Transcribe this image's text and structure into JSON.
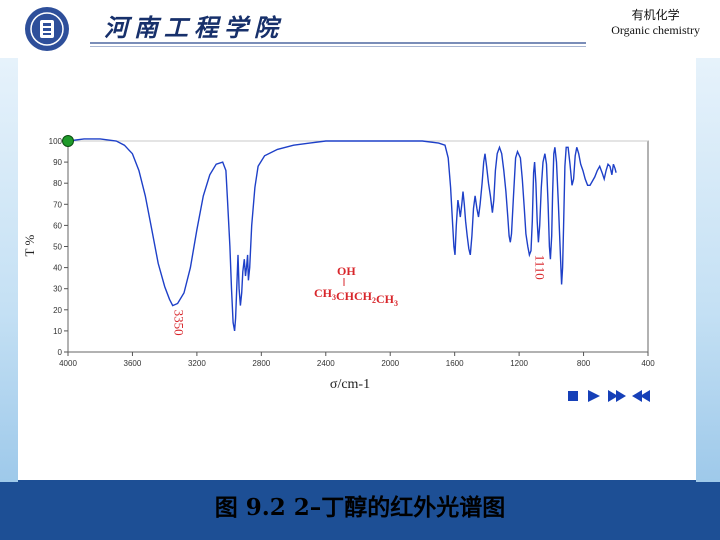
{
  "header": {
    "school_name": "河南工程学院",
    "course_cn": "有机化学",
    "course_en": "Organic chemistry"
  },
  "caption": "图 9.2   2–丁醇的红外光谱图",
  "chart_data": {
    "type": "line",
    "xlabel": "σ/cm-1",
    "ylabel": "T %",
    "xlim": [
      4000,
      400
    ],
    "ylim": [
      0,
      100
    ],
    "x_ticks": [
      4000,
      3600,
      3200,
      2800,
      2400,
      2000,
      1600,
      1200,
      800,
      400
    ],
    "y_ticks": [
      0,
      10,
      20,
      30,
      40,
      50,
      60,
      70,
      80,
      90,
      100
    ],
    "annotations": [
      {
        "text": "3350",
        "x": 3350,
        "y": 22
      },
      {
        "text": "1110",
        "x": 1110,
        "y": 48
      }
    ],
    "molecule": {
      "top": "OH",
      "bottom": "CH3CHCH2CH3"
    },
    "series": [
      {
        "color": "#1e40c8",
        "points": [
          [
            4000,
            100
          ],
          [
            3900,
            101
          ],
          [
            3800,
            101
          ],
          [
            3700,
            100
          ],
          [
            3650,
            98
          ],
          [
            3600,
            94
          ],
          [
            3560,
            86
          ],
          [
            3520,
            74
          ],
          [
            3480,
            58
          ],
          [
            3440,
            42
          ],
          [
            3400,
            31
          ],
          [
            3370,
            25
          ],
          [
            3350,
            22
          ],
          [
            3320,
            23
          ],
          [
            3280,
            28
          ],
          [
            3240,
            40
          ],
          [
            3200,
            58
          ],
          [
            3160,
            74
          ],
          [
            3120,
            84
          ],
          [
            3080,
            89
          ],
          [
            3040,
            90
          ],
          [
            3020,
            86
          ],
          [
            3010,
            72
          ],
          [
            2995,
            50
          ],
          [
            2985,
            30
          ],
          [
            2975,
            14
          ],
          [
            2966,
            10
          ],
          [
            2960,
            16
          ],
          [
            2950,
            36
          ],
          [
            2945,
            46
          ],
          [
            2938,
            30
          ],
          [
            2930,
            22
          ],
          [
            2922,
            28
          ],
          [
            2915,
            38
          ],
          [
            2906,
            44
          ],
          [
            2898,
            36
          ],
          [
            2892,
            40
          ],
          [
            2885,
            46
          ],
          [
            2880,
            34
          ],
          [
            2872,
            40
          ],
          [
            2860,
            60
          ],
          [
            2840,
            78
          ],
          [
            2820,
            88
          ],
          [
            2780,
            93
          ],
          [
            2700,
            96
          ],
          [
            2600,
            98
          ],
          [
            2500,
            99
          ],
          [
            2400,
            100
          ],
          [
            2200,
            100
          ],
          [
            2000,
            100
          ],
          [
            1800,
            100
          ],
          [
            1700,
            99
          ],
          [
            1660,
            98
          ],
          [
            1640,
            92
          ],
          [
            1625,
            78
          ],
          [
            1612,
            60
          ],
          [
            1605,
            50
          ],
          [
            1598,
            46
          ],
          [
            1590,
            60
          ],
          [
            1580,
            72
          ],
          [
            1572,
            68
          ],
          [
            1565,
            64
          ],
          [
            1556,
            70
          ],
          [
            1548,
            76
          ],
          [
            1540,
            70
          ],
          [
            1532,
            62
          ],
          [
            1522,
            55
          ],
          [
            1512,
            49
          ],
          [
            1503,
            46
          ],
          [
            1493,
            55
          ],
          [
            1483,
            68
          ],
          [
            1473,
            74
          ],
          [
            1462,
            68
          ],
          [
            1452,
            64
          ],
          [
            1442,
            70
          ],
          [
            1430,
            80
          ],
          [
            1420,
            90
          ],
          [
            1412,
            94
          ],
          [
            1402,
            88
          ],
          [
            1390,
            80
          ],
          [
            1378,
            74
          ],
          [
            1366,
            66
          ],
          [
            1357,
            72
          ],
          [
            1347,
            86
          ],
          [
            1336,
            94
          ],
          [
            1322,
            97
          ],
          [
            1308,
            94
          ],
          [
            1295,
            86
          ],
          [
            1282,
            76
          ],
          [
            1270,
            64
          ],
          [
            1262,
            55
          ],
          [
            1255,
            52
          ],
          [
            1247,
            56
          ],
          [
            1235,
            74
          ],
          [
            1222,
            92
          ],
          [
            1210,
            95
          ],
          [
            1192,
            92
          ],
          [
            1180,
            82
          ],
          [
            1168,
            68
          ],
          [
            1158,
            56
          ],
          [
            1146,
            50
          ],
          [
            1136,
            46
          ],
          [
            1126,
            48
          ],
          [
            1118,
            62
          ],
          [
            1110,
            85
          ],
          [
            1104,
            90
          ],
          [
            1096,
            80
          ],
          [
            1088,
            62
          ],
          [
            1080,
            52
          ],
          [
            1072,
            60
          ],
          [
            1062,
            78
          ],
          [
            1052,
            90
          ],
          [
            1040,
            94
          ],
          [
            1030,
            89
          ],
          [
            1020,
            70
          ],
          [
            1012,
            50
          ],
          [
            1006,
            44
          ],
          [
            998,
            55
          ],
          [
            992,
            75
          ],
          [
            985,
            94
          ],
          [
            978,
            97
          ],
          [
            968,
            90
          ],
          [
            956,
            70
          ],
          [
            944,
            46
          ],
          [
            936,
            32
          ],
          [
            930,
            40
          ],
          [
            924,
            60
          ],
          [
            916,
            88
          ],
          [
            908,
            97
          ],
          [
            896,
            97
          ],
          [
            884,
            89
          ],
          [
            872,
            79
          ],
          [
            862,
            82
          ],
          [
            852,
            93
          ],
          [
            842,
            97
          ],
          [
            830,
            94
          ],
          [
            818,
            89
          ],
          [
            804,
            86
          ],
          [
            790,
            82
          ],
          [
            775,
            79
          ],
          [
            760,
            79
          ],
          [
            745,
            81
          ],
          [
            730,
            83
          ],
          [
            715,
            86
          ],
          [
            700,
            88
          ],
          [
            685,
            85
          ],
          [
            672,
            82
          ],
          [
            660,
            86
          ],
          [
            648,
            89
          ],
          [
            636,
            88
          ],
          [
            624,
            84
          ],
          [
            615,
            89
          ],
          [
            605,
            87
          ],
          [
            598,
            85
          ]
        ]
      }
    ]
  }
}
